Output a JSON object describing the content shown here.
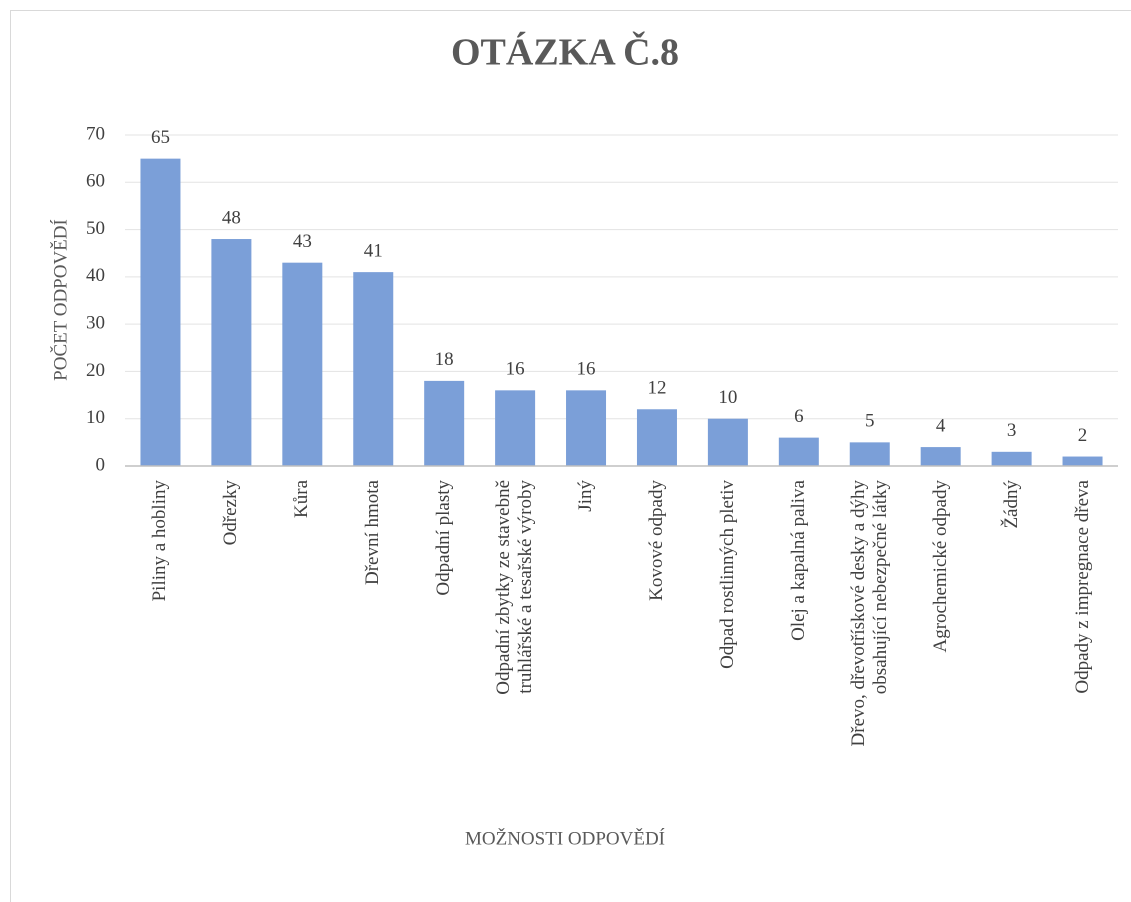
{
  "chart_data": {
    "type": "bar",
    "title": "OTÁZKA Č.8",
    "x_label": "MOŽNOSTI ODPOVĚDÍ",
    "y_label": "POČET ODPOVĚDÍ",
    "categories": [
      "Piliny a hobliny",
      "Odřezky",
      "Kůra",
      "Dřevní hmota",
      "Odpadní plasty",
      "Odpadní zbytky ze stavebně\ntruhlářské a tesařské výroby",
      "Jiný",
      "Kovové odpady",
      "Odpad rostlinných pletiv",
      "Olej a kapalná paliva",
      "Dřevo, dřevotřískové desky a dýhy\nobsahující nebezpečné látky",
      "Agrochemické odpady",
      "Žádný",
      "Odpady z impregnace dřeva"
    ],
    "values": [
      65,
      48,
      43,
      41,
      18,
      16,
      16,
      12,
      10,
      6,
      5,
      4,
      3,
      2
    ],
    "color": "#7b9fd8",
    "ylim": [
      0,
      70
    ],
    "yticks": [
      0,
      10,
      20,
      30,
      40,
      50,
      60,
      70
    ],
    "grid": true
  }
}
